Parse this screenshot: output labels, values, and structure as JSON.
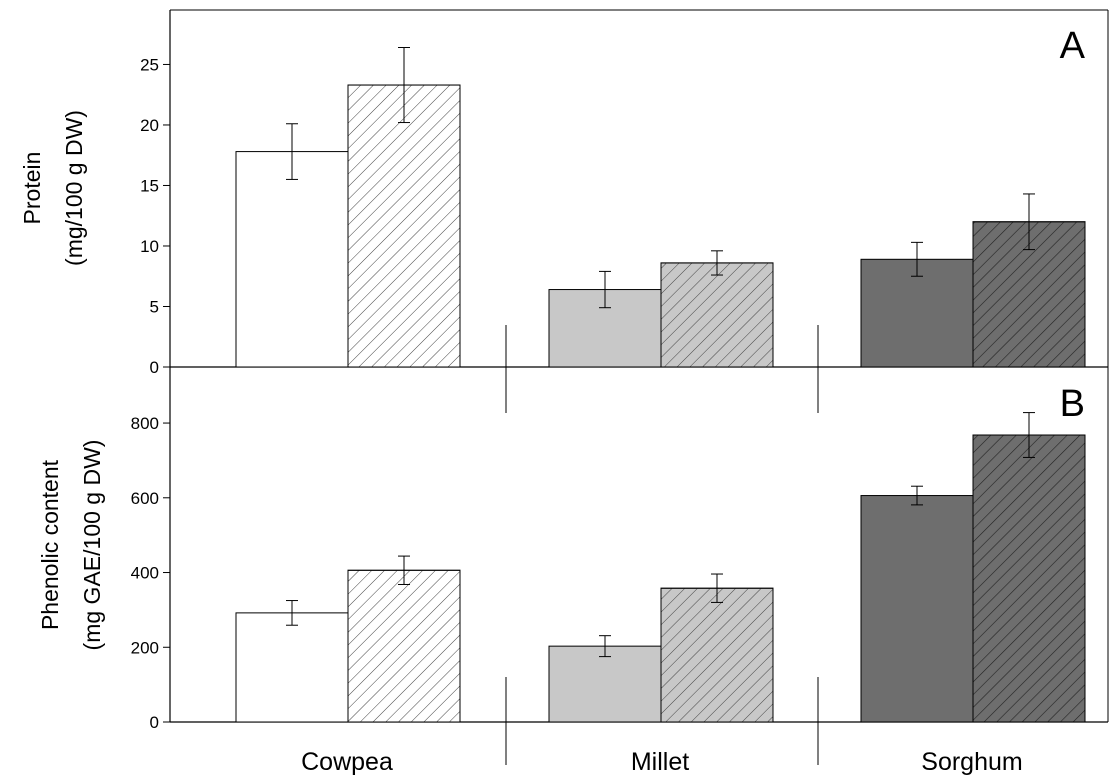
{
  "chart_data": [
    {
      "panel": "A",
      "type": "bar",
      "categories": [
        "Cowpea",
        "Millet",
        "Sorghum"
      ],
      "series": [
        {
          "values": [
            17.8,
            6.4,
            8.9
          ],
          "errors": [
            2.3,
            1.5,
            1.4
          ]
        },
        {
          "values": [
            23.3,
            8.6,
            12.0
          ],
          "errors": [
            3.1,
            1.0,
            2.3
          ]
        }
      ],
      "ylabel_line1": "Protein",
      "ylabel_line2": "(mg/100 g DW)",
      "ylim": [
        0,
        29.5
      ],
      "yticks": [
        0,
        5,
        10,
        15,
        20,
        25
      ],
      "grid": false
    },
    {
      "panel": "B",
      "type": "bar",
      "categories": [
        "Cowpea",
        "Millet",
        "Sorghum"
      ],
      "series": [
        {
          "values": [
            292,
            203,
            606
          ],
          "errors": [
            33,
            28,
            25
          ]
        },
        {
          "values": [
            406,
            358,
            768
          ],
          "errors": [
            38,
            38,
            60
          ]
        }
      ],
      "ylabel_line1": "Phenolic content",
      "ylabel_line2": "(mg GAE/100 g DW)",
      "ylim": [
        0,
        950
      ],
      "yticks": [
        0,
        200,
        400,
        600,
        800
      ],
      "grid": false
    }
  ],
  "colors": {
    "cowpea": "#ffffff",
    "millet": "#c8c8c8",
    "sorghum": "#6e6e6e",
    "outline": "#000000"
  }
}
